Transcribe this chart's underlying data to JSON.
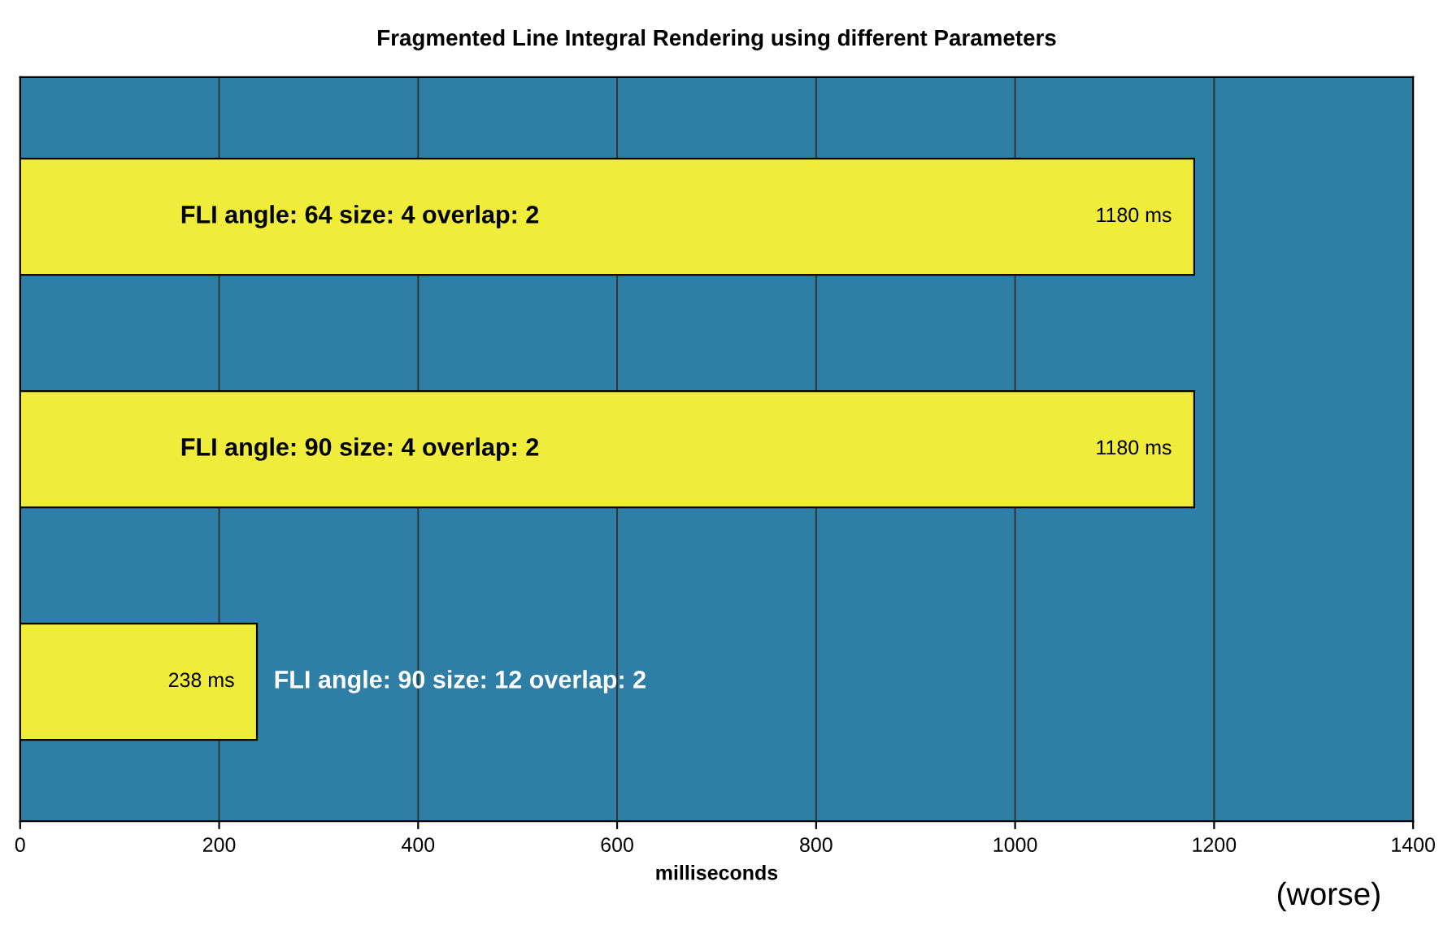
{
  "chart_data": {
    "type": "bar",
    "orientation": "horizontal",
    "title": "Fragmented Line Integral Rendering using different Parameters",
    "xlabel": "milliseconds",
    "categories": [
      "FLI angle: 64 size: 4 overlap: 2",
      "FLI angle: 90 size: 4 overlap: 2",
      "FLI angle: 90 size: 12 overlap: 2"
    ],
    "values": [
      1180,
      1180,
      238
    ],
    "color": "#f0ec3c",
    "value_labels": [
      "1180 ms",
      "1180 ms",
      "238 ms"
    ],
    "xlim": [
      0,
      1400
    ],
    "xticks": [
      0,
      200,
      400,
      600,
      800,
      1000,
      1200,
      1400
    ],
    "grid": "x",
    "tick_labels": "x",
    "legend": false,
    "annotations": [
      "(worse)"
    ]
  }
}
